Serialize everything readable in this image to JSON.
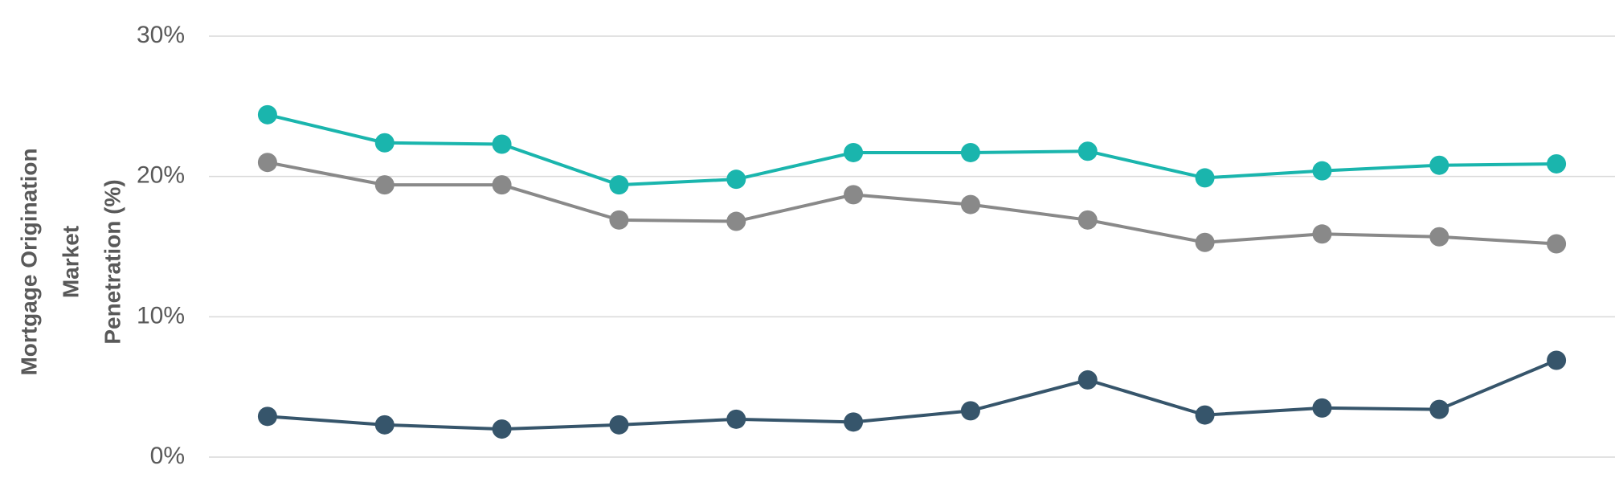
{
  "chart_data": {
    "type": "line",
    "ylabel": [
      "Mortgage Origination",
      "Market",
      "Penetration (%)"
    ],
    "categories": [
      null,
      null,
      null,
      null,
      null,
      null,
      null,
      null,
      null,
      null,
      null,
      null
    ],
    "series": [
      {
        "color": "#1ab5ad",
        "values": [
          24.4,
          22.4,
          22.3,
          19.4,
          19.8,
          21.7,
          21.7,
          21.8,
          19.9,
          20.4,
          20.8,
          20.9
        ]
      },
      {
        "color": "#898989",
        "values": [
          21.0,
          19.4,
          19.4,
          16.9,
          16.8,
          18.7,
          18.0,
          16.9,
          15.3,
          15.9,
          15.7,
          15.2
        ]
      },
      {
        "color": "#36556b",
        "values": [
          2.9,
          2.3,
          2.0,
          2.3,
          2.7,
          2.5,
          3.3,
          5.5,
          3.0,
          3.5,
          3.4,
          6.9
        ]
      }
    ],
    "ylim": [
      0,
      30
    ],
    "yticks": [
      {
        "value": 0,
        "label": "0%"
      },
      {
        "value": 10,
        "label": "10%"
      },
      {
        "value": 20,
        "label": "20%"
      },
      {
        "value": 30,
        "label": "30%"
      }
    ],
    "grid": true
  }
}
